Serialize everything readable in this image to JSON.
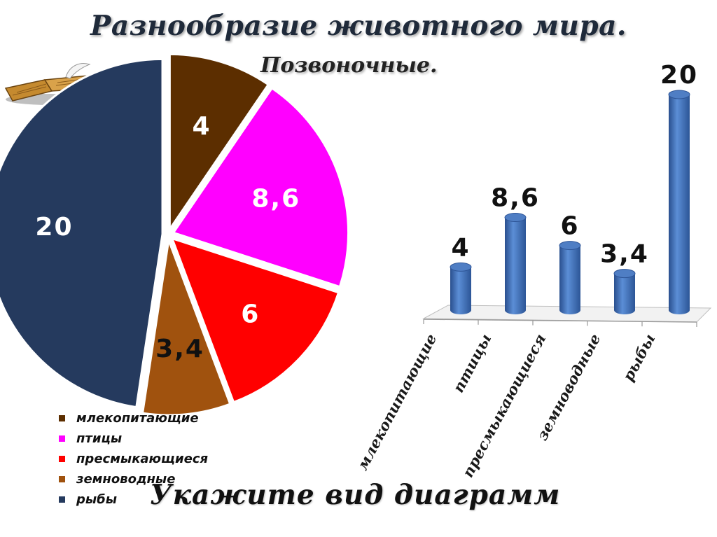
{
  "slide": {
    "title": "Разнообразие животного мира.",
    "subtitle": "Позвоночные.",
    "question": "Укажите вид диаграмм"
  },
  "legend": {
    "items": [
      {
        "label": "млекопитающие",
        "color": "#5c2e00"
      },
      {
        "label": "птицы",
        "color": "#ff00ff"
      },
      {
        "label": "пресмыкающиеся",
        "color": "#ff0000"
      },
      {
        "label": "земноводные",
        "color": "#a0520e"
      },
      {
        "label": "рыбы",
        "color": "#253a5e"
      }
    ]
  },
  "chart_data": [
    {
      "type": "pie",
      "title": "",
      "categories": [
        "млекопитающие",
        "птицы",
        "пресмыкающиеся",
        "земноводные",
        "рыбы"
      ],
      "values": [
        4,
        8.6,
        6,
        3.4,
        20
      ],
      "labels": [
        "4",
        "8,6",
        "6",
        "3,4",
        "20"
      ],
      "colors": [
        "#5c2e00",
        "#ff00ff",
        "#ff0000",
        "#a0520e",
        "#253a5e"
      ],
      "label_colors": [
        "#ffffff",
        "#ffffff",
        "#ffffff",
        "#111111",
        "#ffffff"
      ],
      "legend": "bottom-left"
    },
    {
      "type": "bar",
      "title": "",
      "categories": [
        "млекопитающие",
        "птицы",
        "пресмыкающиеся",
        "земноводные",
        "рыбы"
      ],
      "values": [
        4,
        8.6,
        6,
        3.4,
        20
      ],
      "labels": [
        "4",
        "8,6",
        "6",
        "3,4",
        "20"
      ],
      "color": "#3d6cb4",
      "ylim": [
        0,
        20
      ],
      "grid": false
    }
  ]
}
